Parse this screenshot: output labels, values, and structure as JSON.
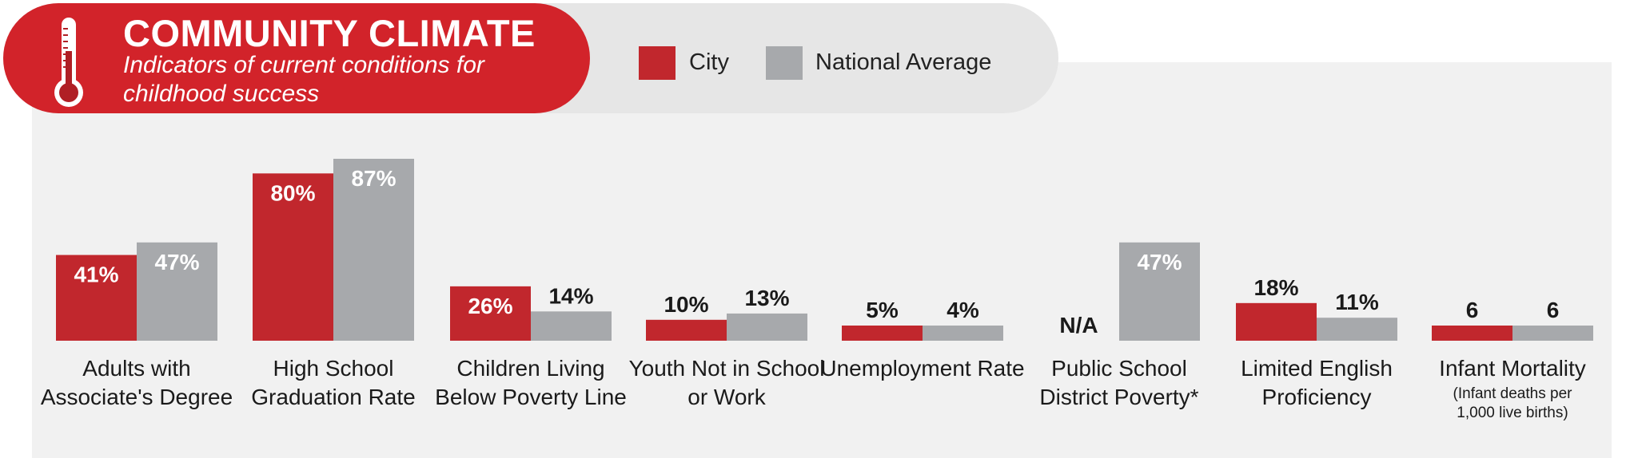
{
  "header": {
    "title": "COMMUNITY CLIMATE",
    "subtitle": "Indicators of current conditions for childhood success",
    "icon": "thermometer-icon"
  },
  "legend": [
    {
      "label": "City",
      "color": "#c1272d"
    },
    {
      "label": "National Average",
      "color": "#a7a9ac"
    }
  ],
  "chart_data": {
    "type": "bar",
    "categories": [
      "Adults with Associate's Degree",
      "High School Graduation Rate",
      "Children Living Below Poverty Line",
      "Youth Not in School or Work",
      "Unemployment Rate",
      "Public School District Poverty*",
      "Limited English Proficiency",
      "Infant Mortality"
    ],
    "category_notes": [
      "",
      "",
      "",
      "",
      "",
      "",
      "",
      "(Infant deaths per 1,000 live births)"
    ],
    "series": [
      {
        "name": "City",
        "color": "#c1272d",
        "values": [
          41,
          80,
          26,
          10,
          5,
          null,
          18,
          6
        ],
        "labels": [
          "41%",
          "80%",
          "26%",
          "10%",
          "5%",
          "N/A",
          "18%",
          "6"
        ]
      },
      {
        "name": "National Average",
        "color": "#a7a9ac",
        "values": [
          47,
          87,
          14,
          13,
          4,
          47,
          11,
          6
        ],
        "labels": [
          "47%",
          "87%",
          "14%",
          "13%",
          "4%",
          "47%",
          "11%",
          "6"
        ]
      }
    ],
    "ylim": [
      0,
      87
    ],
    "grid": false,
    "legend_position": "top"
  }
}
